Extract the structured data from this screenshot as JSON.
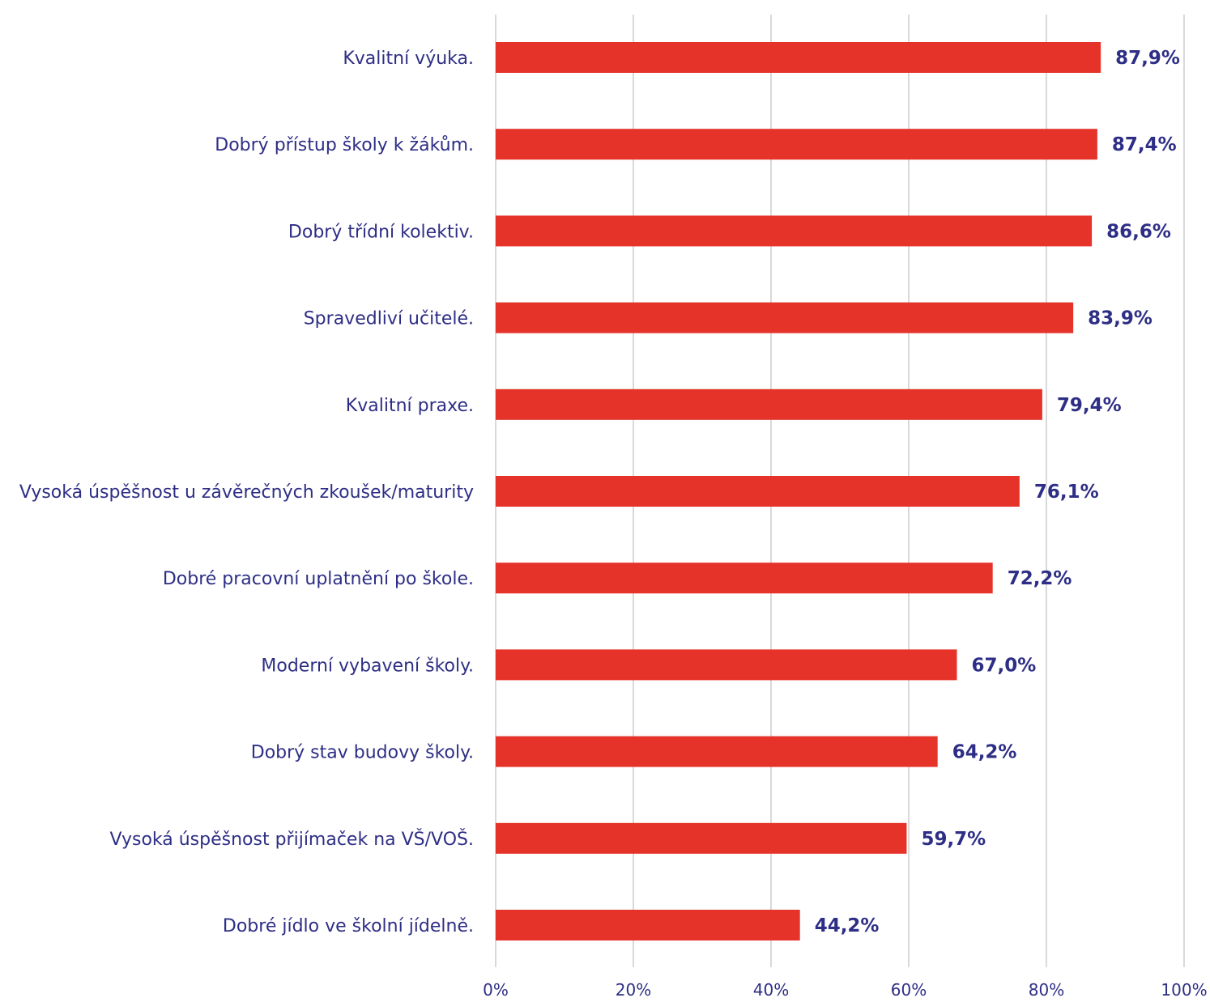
{
  "chart_data": {
    "type": "bar",
    "orientation": "horizontal",
    "categories": [
      "Kvalitní výuka.",
      "Dobrý přístup školy k žákům.",
      "Dobrý třídní kolektiv.",
      "Spravedliví učitelé.",
      "Kvalitní praxe.",
      "Vysoká úspěšnost u závěrečných zkoušek/maturity",
      "Dobré pracovní uplatnění po škole.",
      "Moderní vybavení školy.",
      "Dobrý stav budovy školy.",
      "Vysoká úspěšnost přijímaček na VŠ/VOŠ.",
      "Dobré jídlo ve školní jídelně."
    ],
    "values": [
      87.9,
      87.4,
      86.6,
      83.9,
      79.4,
      76.1,
      72.2,
      67.0,
      64.2,
      59.7,
      44.2
    ],
    "value_labels": [
      "87,9%",
      "87,4%",
      "86,6%",
      "83,9%",
      "79,4%",
      "76,1%",
      "72,2%",
      "67,0%",
      "64,2%",
      "59,7%",
      "44,2%"
    ],
    "xlim": [
      0,
      100
    ],
    "x_ticks": [
      0,
      20,
      40,
      60,
      80,
      100
    ],
    "x_tick_labels": [
      "0%",
      "20%",
      "40%",
      "60%",
      "80%",
      "100%"
    ],
    "grid": true,
    "title": "",
    "xlabel": "",
    "ylabel": "",
    "colors": {
      "bar": "#e5332a",
      "text": "#2e2e86",
      "grid": "#d9d9d9"
    }
  }
}
